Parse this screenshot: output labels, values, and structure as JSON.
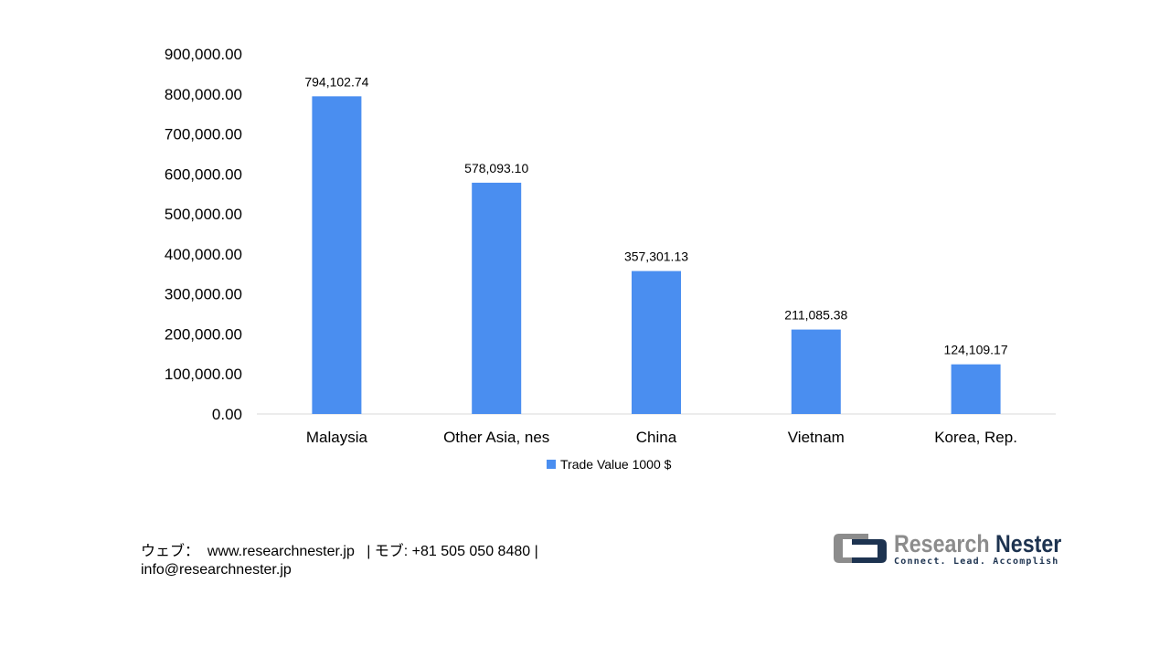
{
  "chart_data": {
    "type": "bar",
    "categories": [
      "Malaysia",
      "Other Asia, nes",
      "China",
      "Vietnam",
      "Korea, Rep."
    ],
    "series": [
      {
        "name": "Trade Value 1000 $",
        "values": [
          794102.74,
          578093.1,
          357301.13,
          211085.38,
          124109.17
        ]
      }
    ],
    "data_labels": [
      "794,102.74",
      "578,093.10",
      "357,301.13",
      "211,085.38",
      "124,109.17"
    ],
    "y_ticks": [
      "0.00",
      "100,000.00",
      "200,000.00",
      "300,000.00",
      "400,000.00",
      "500,000.00",
      "600,000.00",
      "700,000.00",
      "800,000.00",
      "900,000.00"
    ],
    "ylim": [
      0,
      900000
    ],
    "grid": false,
    "legend_position": "bottom",
    "bar_color": "#4a8ef0"
  },
  "legend": {
    "label": "Trade Value 1000 $"
  },
  "footer": {
    "line1": "ウェブ：  www.researchnester.jp   | モブ: +81 505 050 8480 |",
    "line2": "info@researchnester.jp"
  },
  "logo": {
    "name_part1": "Research",
    "name_part2": "Nester",
    "tagline": "Connect. Lead. Accomplish",
    "icon": "research-nester-logo-icon"
  }
}
